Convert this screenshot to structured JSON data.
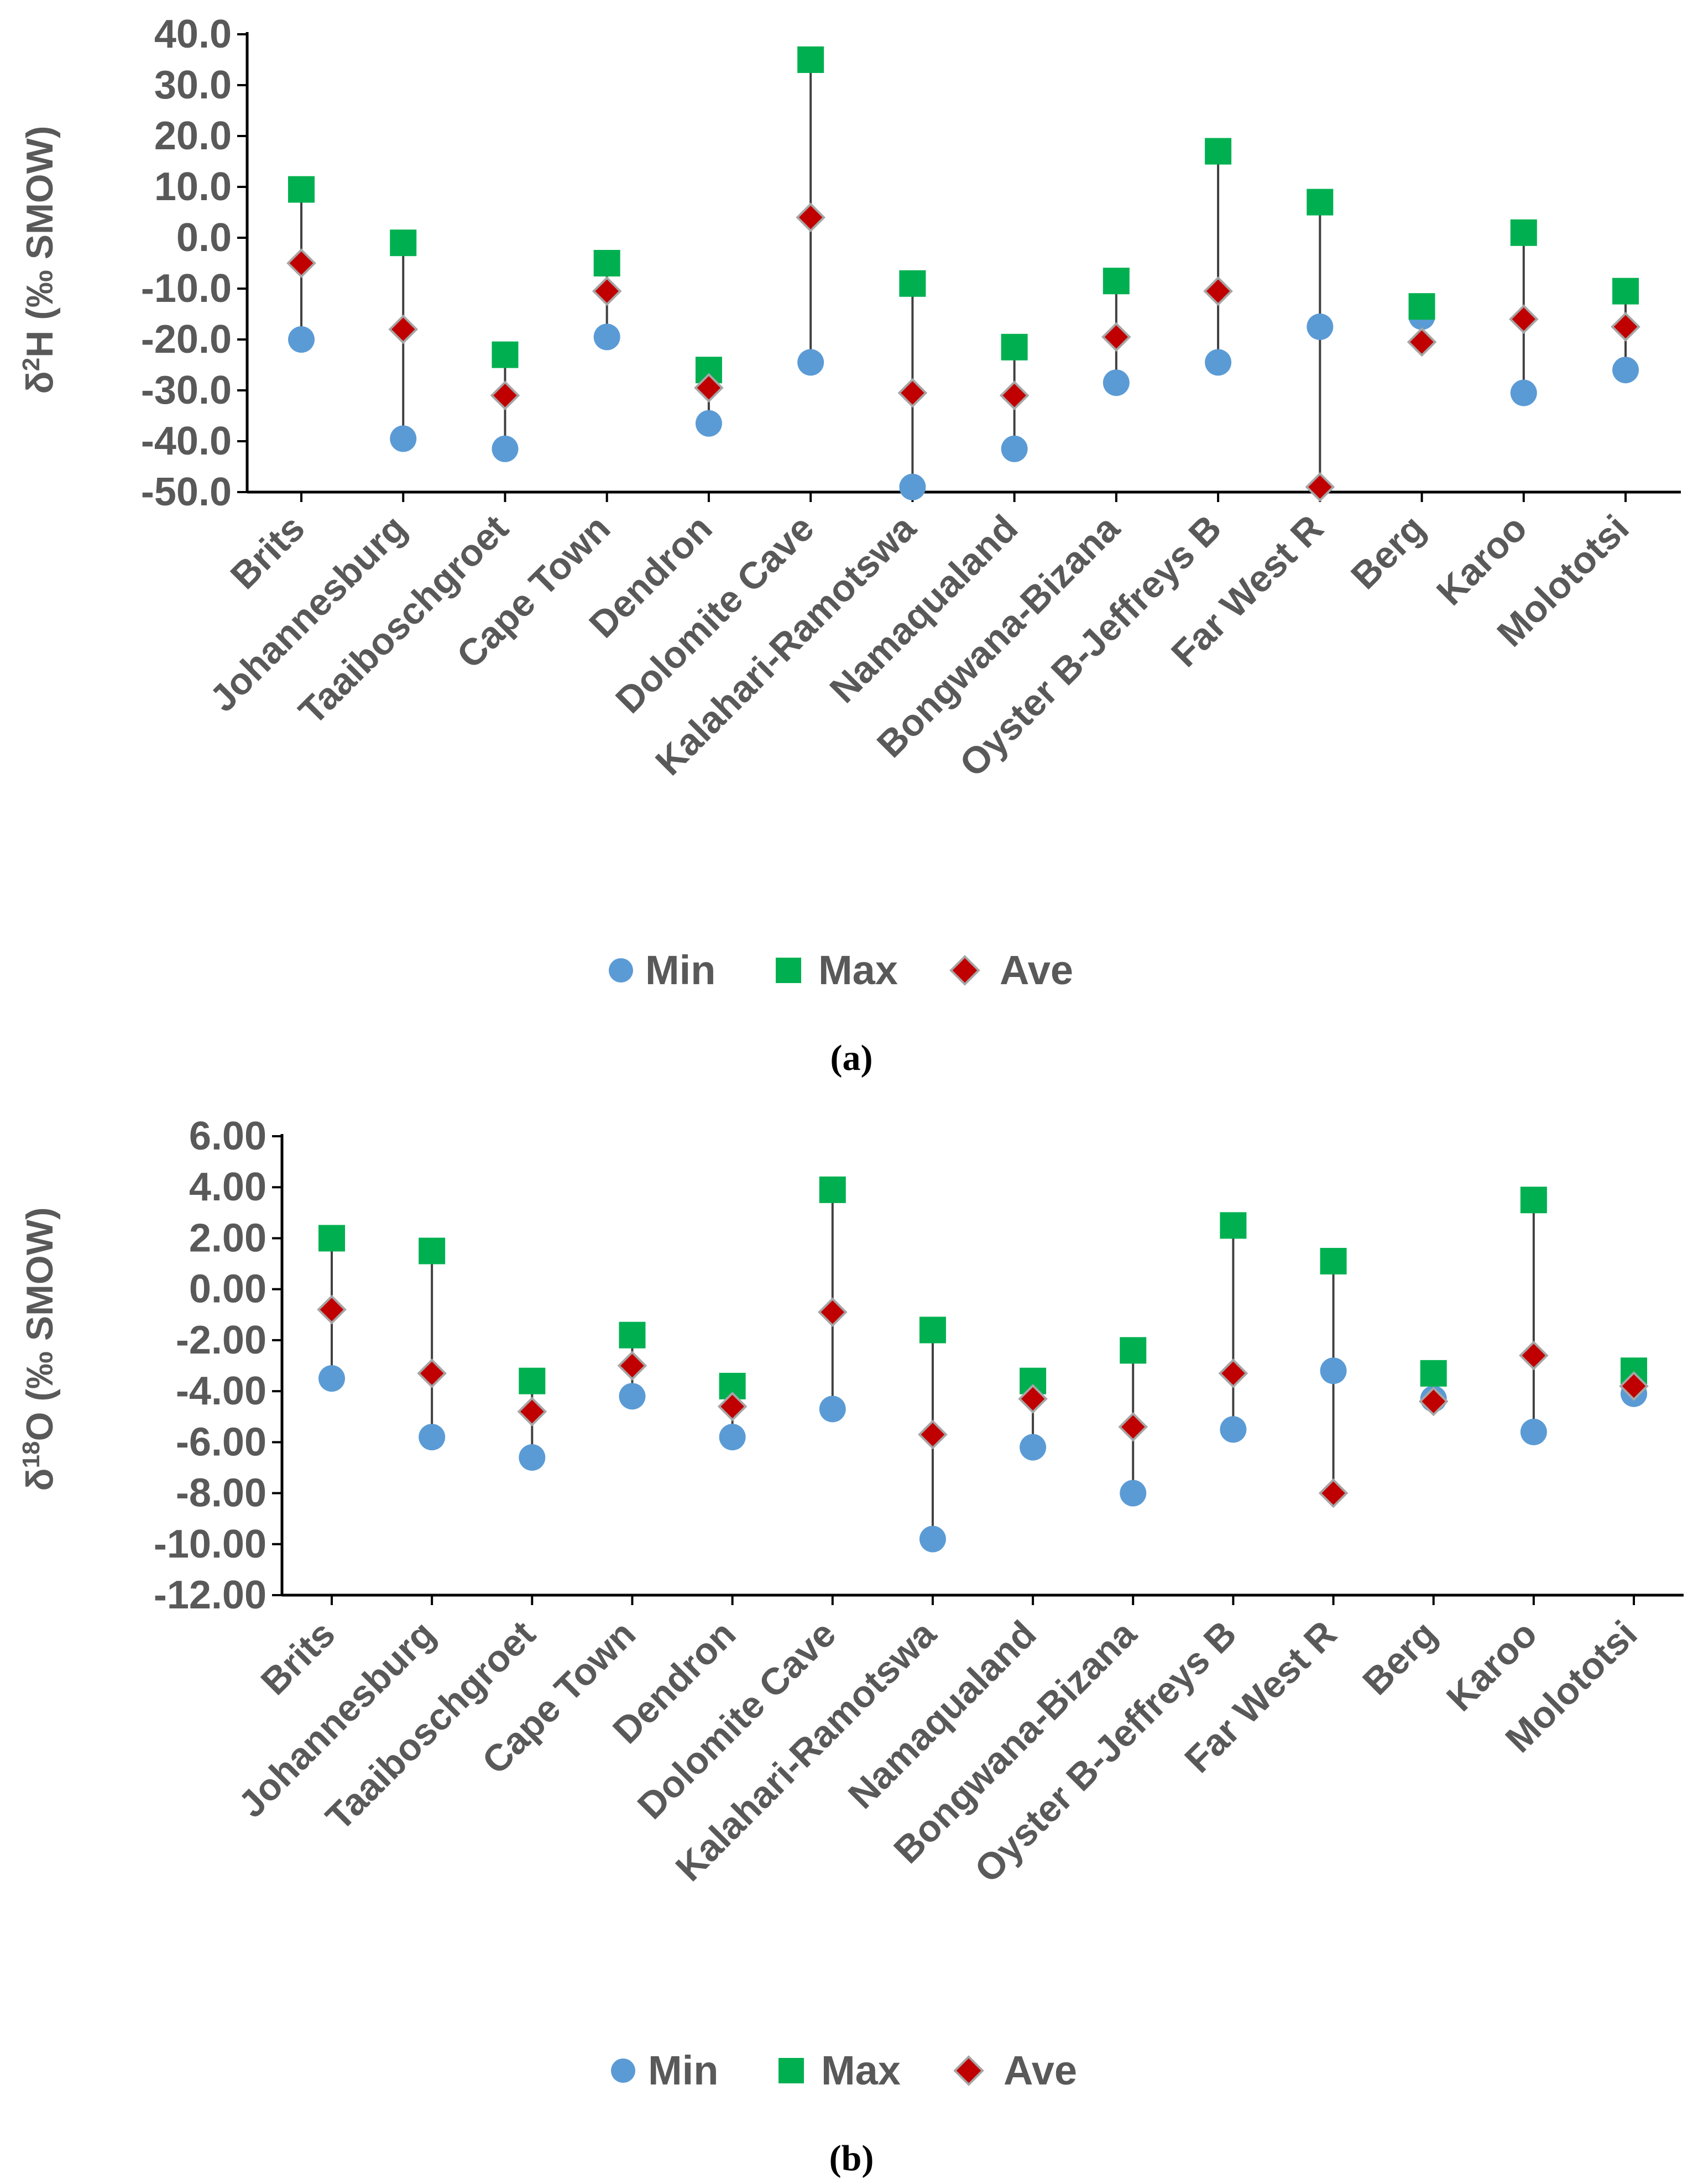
{
  "colors": {
    "min": "#5B9BD5",
    "max": "#00B050",
    "ave": "#C00000",
    "ave_outline": "#A6A6A6",
    "axis": "#000000",
    "text": "#595959",
    "range_line": "#404040"
  },
  "legend": {
    "min_label": "Min",
    "max_label": "Max",
    "ave_label": "Ave"
  },
  "chart_data": [
    {
      "type": "scatter",
      "panel_label": "(a)",
      "ylabel_delta": "δ",
      "ylabel_sup": "2",
      "ylabel_rest": "H (‰ SMOW)",
      "ylim": [
        -50,
        40
      ],
      "yticks": [
        40,
        30,
        20,
        10,
        0,
        -10,
        -20,
        -30,
        -40,
        -50
      ],
      "ytick_labels": [
        "40.0",
        "30.0",
        "20.0",
        "10.0",
        "0.0",
        "-10.0",
        "-20.0",
        "-30.0",
        "-40.0",
        "-50.0"
      ],
      "categories": [
        "Brits",
        "Johannesburg",
        "Taaiboschgroet",
        "Cape Town",
        "Dendron",
        "Dolomite Cave",
        "Kalahari-Ramotswa",
        "Namaqualand",
        "Bongwana-Bizana",
        "Oyster B-Jeffreys B",
        "Far West R",
        "Berg",
        "Karoo",
        "Molototsi"
      ],
      "series": [
        {
          "name": "Min",
          "values": [
            -20.0,
            -39.5,
            -41.5,
            -19.5,
            -36.5,
            -24.5,
            -49.0,
            -41.5,
            -28.5,
            -24.5,
            -17.5,
            -15.5,
            -30.5,
            -26.0
          ]
        },
        {
          "name": "Max",
          "values": [
            9.5,
            -1.0,
            -23.0,
            -5.0,
            -26.0,
            35.0,
            -9.0,
            -21.5,
            -8.5,
            17.0,
            7.0,
            -13.5,
            1.0,
            -10.5
          ]
        },
        {
          "name": "Ave",
          "values": [
            -5.0,
            -18.0,
            -31.0,
            -10.5,
            -29.5,
            4.0,
            -30.5,
            -31.0,
            -19.5,
            -10.5,
            -49.0,
            -20.5,
            -16.0,
            -17.5
          ]
        }
      ]
    },
    {
      "type": "scatter",
      "panel_label": "(b)",
      "ylabel_delta": "δ",
      "ylabel_sup": "18",
      "ylabel_rest": "O (‰ SMOW)",
      "ylim": [
        -12,
        6
      ],
      "yticks": [
        6,
        4,
        2,
        0,
        -2,
        -4,
        -6,
        -8,
        -10,
        -12
      ],
      "ytick_labels": [
        "6.00",
        "4.00",
        "2.00",
        "0.00",
        "-2.00",
        "-4.00",
        "-6.00",
        "-8.00",
        "-10.00",
        "-12.00"
      ],
      "categories": [
        "Brits",
        "Johannesburg",
        "Taaiboschgroet",
        "Cape Town",
        "Dendron",
        "Dolomite Cave",
        "Kalahari-Ramotswa",
        "Namaqualand",
        "Bongwana-Bizana",
        "Oyster B-Jeffreys B",
        "Far West R",
        "Berg",
        "Karoo",
        "Molototsi"
      ],
      "series": [
        {
          "name": "Min",
          "values": [
            -3.5,
            -5.8,
            -6.6,
            -4.2,
            -5.8,
            -4.7,
            -9.8,
            -6.2,
            -8.0,
            -5.5,
            -3.2,
            -4.3,
            -5.6,
            -4.1
          ]
        },
        {
          "name": "Max",
          "values": [
            2.0,
            1.5,
            -3.6,
            -1.8,
            -3.8,
            3.9,
            -1.6,
            -3.6,
            -2.4,
            2.5,
            1.1,
            -3.3,
            3.5,
            -3.2
          ]
        },
        {
          "name": "Ave",
          "values": [
            -0.8,
            -3.3,
            -4.8,
            -3.0,
            -4.6,
            -0.9,
            -5.7,
            -4.3,
            -5.4,
            -3.3,
            -8.0,
            -4.4,
            -2.6,
            -3.8
          ]
        }
      ]
    }
  ]
}
